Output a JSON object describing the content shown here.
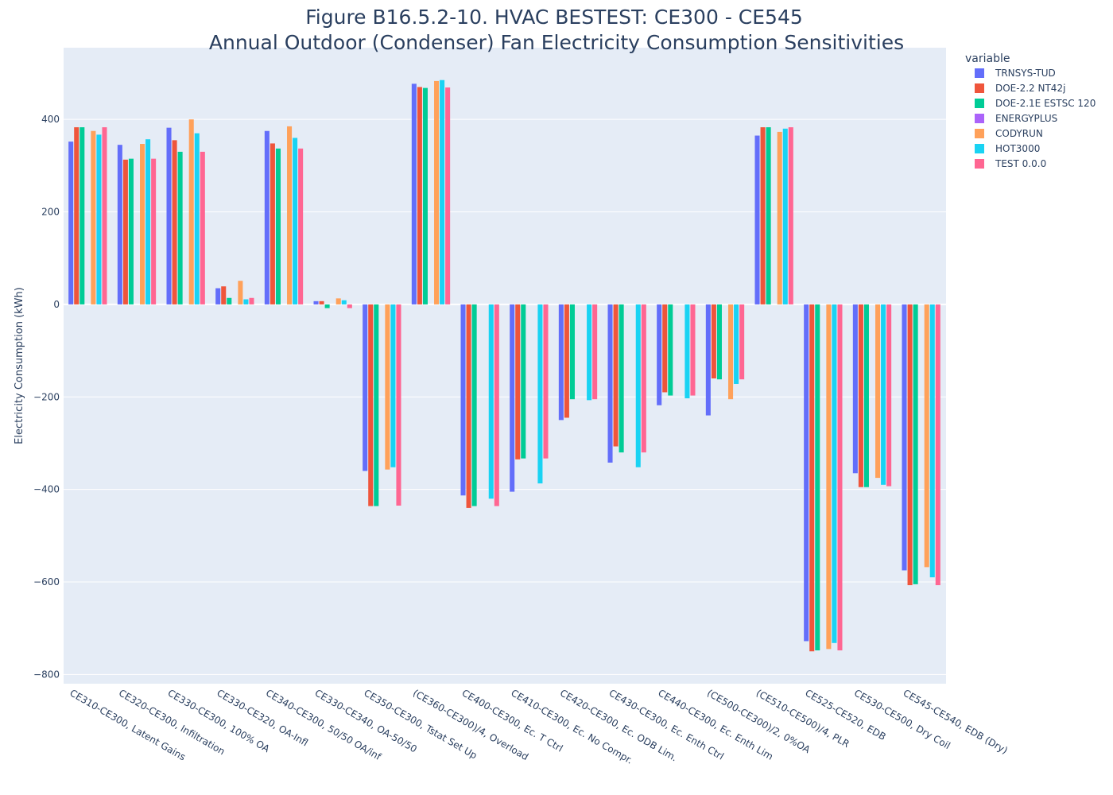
{
  "chart_data": {
    "type": "bar",
    "title": "Figure B16.5.2-10. HVAC BESTEST: CE300 - CE545",
    "subtitle": "Annual Outdoor (Condenser) Fan Electricity Consumption Sensitivities",
    "xlabel": "",
    "ylabel": "Electricity Consumption (kWh)",
    "ylim": [
      -820,
      555
    ],
    "yticks": [
      -800,
      -600,
      -400,
      -200,
      0,
      200,
      400
    ],
    "grid": true,
    "legend_title": "variable",
    "legend_position": "right",
    "categories": [
      "CE310-CE300, Latent Gains",
      "CE320-CE300, Infiltration",
      "CE330-CE300, 100% OA",
      "CE330-CE320, OA-Infl",
      "CE340-CE300, 50/50 OA/inf",
      "CE330-CE340, OA-50/50",
      "CE350-CE300, Tstat Set Up",
      "(CE360-CE300)/4, Overload",
      "CE400-CE300, Ec. T Ctrl",
      "CE410-CE300, Ec. No Compr.",
      "CE420-CE300, Ec. ODB Lim.",
      "CE430-CE300, Ec. Enth Ctrl",
      "CE440-CE300, Ec. Enth Lim",
      "(CE500-CE300)/2, 0%OA",
      "(CE510-CE500)/4, PLR",
      "CE525-CE520, EDB",
      "CE530-CE500, Dry Coil",
      "CE545-CE540, EDB (Dry)"
    ],
    "series": [
      {
        "name": "TRNSYS-TUD",
        "color": "#636efa",
        "values": [
          352,
          345,
          382,
          35,
          375,
          7,
          -360,
          477,
          -413,
          -405,
          -250,
          -342,
          -218,
          -240,
          365,
          -728,
          -365,
          -575
        ]
      },
      {
        "name": "DOE-2.2 NT42j",
        "color": "#ef553b",
        "values": [
          383,
          313,
          355,
          39,
          348,
          7,
          -436,
          470,
          -440,
          -335,
          -245,
          -307,
          -190,
          -160,
          383,
          -750,
          -395,
          -607
        ]
      },
      {
        "name": "DOE-2.1E ESTSC 120",
        "color": "#00cc96",
        "values": [
          383,
          315,
          330,
          14,
          337,
          -8,
          -436,
          468,
          -436,
          -333,
          -205,
          -320,
          -197,
          -162,
          383,
          -748,
          -395,
          -605
        ]
      },
      {
        "name": "ENERGYPLUS",
        "color": "#ab63fa",
        "values": [
          null,
          null,
          null,
          null,
          null,
          null,
          null,
          null,
          null,
          null,
          null,
          null,
          null,
          null,
          null,
          null,
          null,
          null
        ]
      },
      {
        "name": "CODYRUN",
        "color": "#ffa15a",
        "values": [
          375,
          347,
          400,
          51,
          385,
          13,
          -357,
          483,
          null,
          null,
          null,
          null,
          null,
          -205,
          373,
          -745,
          -375,
          -568
        ]
      },
      {
        "name": "HOT3000",
        "color": "#19d3f3",
        "values": [
          367,
          357,
          370,
          11,
          360,
          9,
          -352,
          485,
          -420,
          -387,
          -207,
          -352,
          -203,
          -172,
          380,
          -732,
          -390,
          -590
        ]
      },
      {
        "name": "TEST 0.0.0",
        "color": "#ff6692",
        "values": [
          383,
          315,
          330,
          14,
          337,
          -8,
          -435,
          469,
          -436,
          -333,
          -205,
          -320,
          -197,
          -162,
          383,
          -748,
          -393,
          -607
        ]
      }
    ]
  }
}
